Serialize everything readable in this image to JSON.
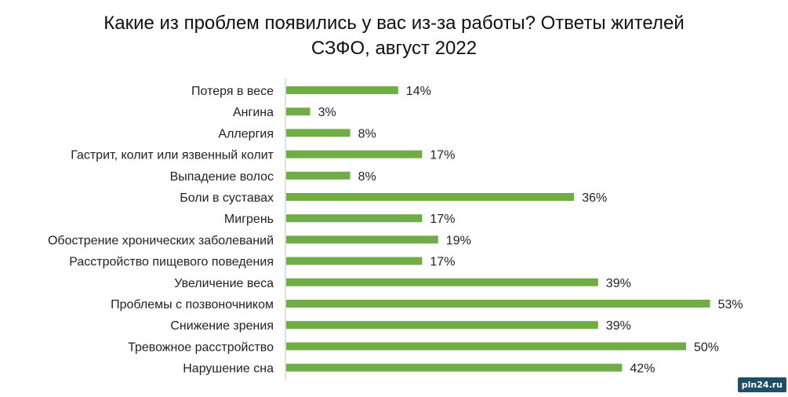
{
  "chart_data": {
    "type": "bar",
    "orientation": "horizontal",
    "title_line1": "Какие из проблем  появились у вас из-за работы? Ответы жителей",
    "title_line2": "СЗФО, август 2022",
    "categories": [
      "Потеря в весе",
      "Ангина",
      "Аллергия",
      "Гастрит, колит или язвенный колит",
      "Выпадение волос",
      "Боли в суставах",
      "Мигрень",
      "Обострение хронических заболеваний",
      "Расстройство пищевого поведения",
      "Увеличение веса",
      "Проблемы с позвоночником",
      "Снижение зрения",
      "Тревожное расстройство",
      "Нарушение сна"
    ],
    "values": [
      14,
      3,
      8,
      17,
      8,
      36,
      17,
      19,
      17,
      39,
      53,
      39,
      50,
      42
    ],
    "value_suffix": "%",
    "bar_color": "#70ad47",
    "grid": false,
    "legend": "none"
  },
  "watermark": "pln24.ru"
}
